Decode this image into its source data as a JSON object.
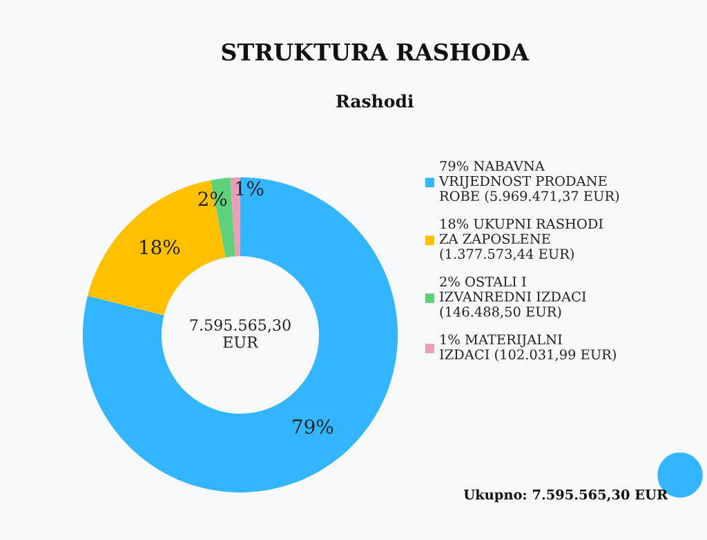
{
  "chart_data": {
    "type": "donut",
    "title": "STRUKTURA RASHODA",
    "subtitle": "Rashodi",
    "categories": [
      "79% NABAVNA\nVRIJEDNOST PRODANE\nROBE (5.969.471,37 EUR)",
      "18% UKUPNI RASHODI\nZA ZAPOSLENE\n(1.377.573,44 EUR)",
      "2% OSTALI I\nIZVANREDNI IZDACI\n(146.488,50 EUR)",
      "1% MATERIJALNI\nIZDACI (102.031,99 EUR)"
    ],
    "values": [
      79,
      18,
      2,
      1
    ],
    "colors": [
      "#33b5ff",
      "#ffc000",
      "#5fd17a",
      "#e6a0b8"
    ],
    "value_labels": [
      "79%",
      "18%",
      "2%",
      "1%"
    ],
    "legend": "right",
    "annotations": [
      "7.595.565,30\nEUR",
      "Ukupno: 7.595.565,30 EUR"
    ]
  }
}
